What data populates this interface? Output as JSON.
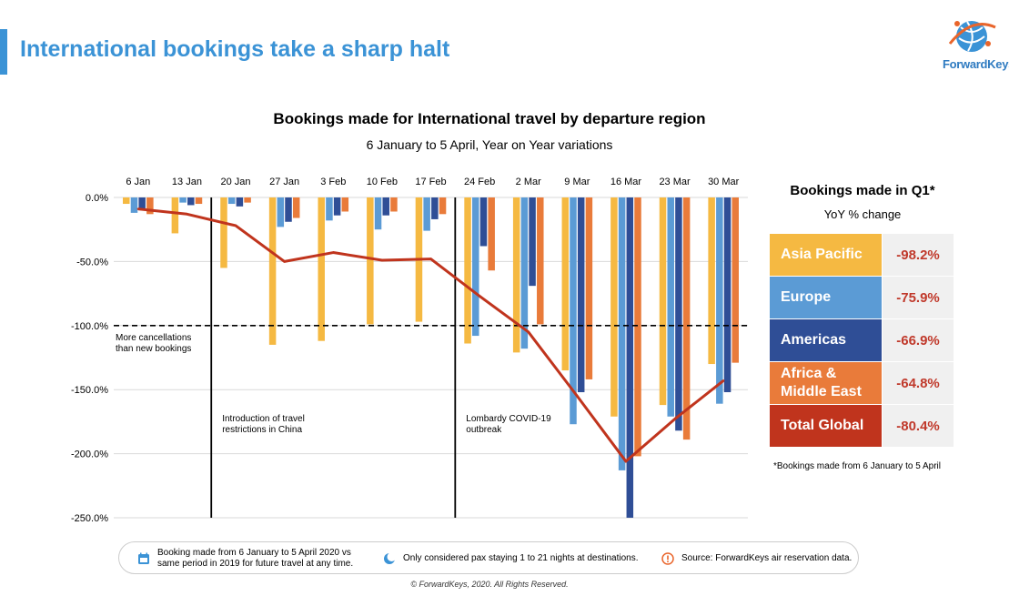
{
  "header": {
    "title": "International bookings take a sharp halt",
    "logo_text": "ForwardKeys"
  },
  "chart_data": {
    "type": "bar",
    "title": "Bookings made for International travel by departure region",
    "subtitle": "6 January to 5 April, Year on Year variations",
    "categories": [
      "6 Jan",
      "13 Jan",
      "20 Jan",
      "27 Jan",
      "3 Feb",
      "10 Feb",
      "17 Feb",
      "24 Feb",
      "2 Mar",
      "9 Mar",
      "16 Mar",
      "23 Mar",
      "30 Mar"
    ],
    "y_ticks": [
      "0.0%",
      "-50.0%",
      "-100.0%",
      "-150.0%",
      "-200.0%",
      "-250.0%"
    ],
    "ylim": [
      -250,
      0
    ],
    "series": [
      {
        "name": "Asia Pacific",
        "color": "#f5b942",
        "values": [
          -5,
          -28,
          -55,
          -115,
          -112,
          -99,
          -97,
          -114,
          -121,
          -135,
          -171,
          -162,
          -130
        ]
      },
      {
        "name": "Europe",
        "color": "#5b9bd5",
        "values": [
          -12,
          -4,
          -5,
          -23,
          -18,
          -25,
          -26,
          -108,
          -118,
          -177,
          -213,
          -171,
          -161
        ]
      },
      {
        "name": "Americas",
        "color": "#2f4e96",
        "values": [
          -10,
          -6,
          -7,
          -19,
          -14,
          -14,
          -17,
          -38,
          -69,
          -152,
          -250,
          -182,
          -152
        ]
      },
      {
        "name": "Africa & Middle East",
        "color": "#e97b3a",
        "values": [
          -13,
          -5,
          -4,
          -16,
          -11,
          -11,
          -13,
          -57,
          -99,
          -142,
          -202,
          -189,
          -129
        ]
      },
      {
        "name": "Total Global",
        "color": "#c0341d",
        "type": "line",
        "values": [
          -9,
          -13,
          -22,
          -50,
          -43,
          -49,
          -48,
          -77,
          -105,
          -155,
          -206,
          -173,
          -143
        ]
      }
    ],
    "reference_line": {
      "value": -100,
      "label": "More cancellations than new bookings"
    },
    "annotations": [
      {
        "after_category": "13 Jan",
        "label": "Introduction of travel restrictions in China"
      },
      {
        "after_category": "17 Feb",
        "label": "Lombardy COVID-19 outbreak"
      }
    ]
  },
  "legend": {
    "title": "Bookings made in Q1*",
    "subtitle": "YoY % change",
    "rows": [
      {
        "label": "Asia Pacific",
        "value": "-98.2%",
        "color": "#f5b942"
      },
      {
        "label": "Europe",
        "value": "-75.9%",
        "color": "#5b9bd5"
      },
      {
        "label": "Americas",
        "value": "-66.9%",
        "color": "#2f4e96"
      },
      {
        "label": "Africa & Middle East",
        "value": "-64.8%",
        "color": "#e97b3a"
      },
      {
        "label": "Total Global",
        "value": "-80.4%",
        "color": "#c0341d"
      }
    ],
    "footnote": "*Bookings made from 6 January to 5 April"
  },
  "info": {
    "booking_period": "Booking made from 6 January to 5 April 2020 vs same period in 2019 for future travel at any time.",
    "pax_note": "Only considered pax staying 1 to 21 nights at destinations.",
    "source": "Source: ForwardKeys air reservation data."
  },
  "footer": {
    "copyright": "© ForwardKeys, 2020. All Rights Reserved."
  }
}
